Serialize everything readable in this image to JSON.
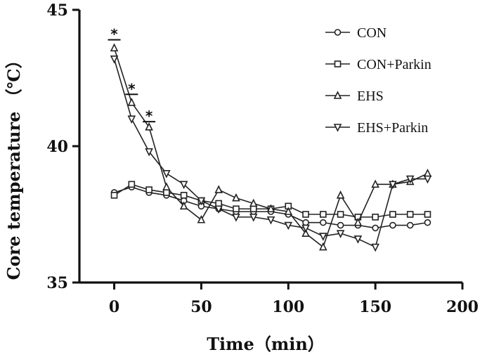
{
  "chart_data": {
    "type": "line",
    "title": "",
    "xlabel": "Time（min）",
    "ylabel": "Core temperature （℃）",
    "xlim": [
      -20,
      200
    ],
    "ylim": [
      35,
      45
    ],
    "xticks": [
      0,
      50,
      100,
      150,
      200
    ],
    "yticks": [
      35,
      40,
      45
    ],
    "grid": false,
    "legend_position": "top-right",
    "x": [
      0,
      10,
      20,
      30,
      40,
      50,
      60,
      70,
      80,
      90,
      100,
      110,
      120,
      130,
      140,
      150,
      160,
      170,
      180
    ],
    "series": [
      {
        "name": "CON",
        "marker": "circle",
        "values": [
          38.3,
          38.5,
          38.3,
          38.2,
          38.0,
          37.8,
          37.7,
          37.6,
          37.6,
          37.6,
          37.5,
          37.2,
          37.2,
          37.1,
          37.1,
          37.0,
          37.1,
          37.1,
          37.2
        ]
      },
      {
        "name": "CON+Parkin",
        "marker": "square",
        "values": [
          38.2,
          38.6,
          38.4,
          38.3,
          38.2,
          38.0,
          37.9,
          37.7,
          37.7,
          37.7,
          37.8,
          37.5,
          37.5,
          37.5,
          37.4,
          37.4,
          37.5,
          37.5,
          37.5
        ]
      },
      {
        "name": "EHS",
        "marker": "triangle-up",
        "values": [
          43.6,
          41.6,
          40.7,
          38.5,
          37.8,
          37.3,
          38.4,
          38.1,
          37.9,
          37.7,
          37.6,
          36.8,
          36.3,
          38.2,
          37.2,
          38.6,
          38.6,
          38.7,
          39.0
        ]
      },
      {
        "name": "EHS+Parkin",
        "marker": "triangle-down",
        "values": [
          43.2,
          41.0,
          39.8,
          39.0,
          38.6,
          38.0,
          37.7,
          37.4,
          37.4,
          37.3,
          37.1,
          37.0,
          36.7,
          36.8,
          36.6,
          36.3,
          38.6,
          38.8,
          38.8
        ]
      }
    ],
    "annotations": [
      {
        "label": "*",
        "x": 0,
        "y": 43.9
      },
      {
        "label": "*",
        "x": 10,
        "y": 41.9
      },
      {
        "label": "*",
        "x": 20,
        "y": 40.9
      }
    ]
  }
}
